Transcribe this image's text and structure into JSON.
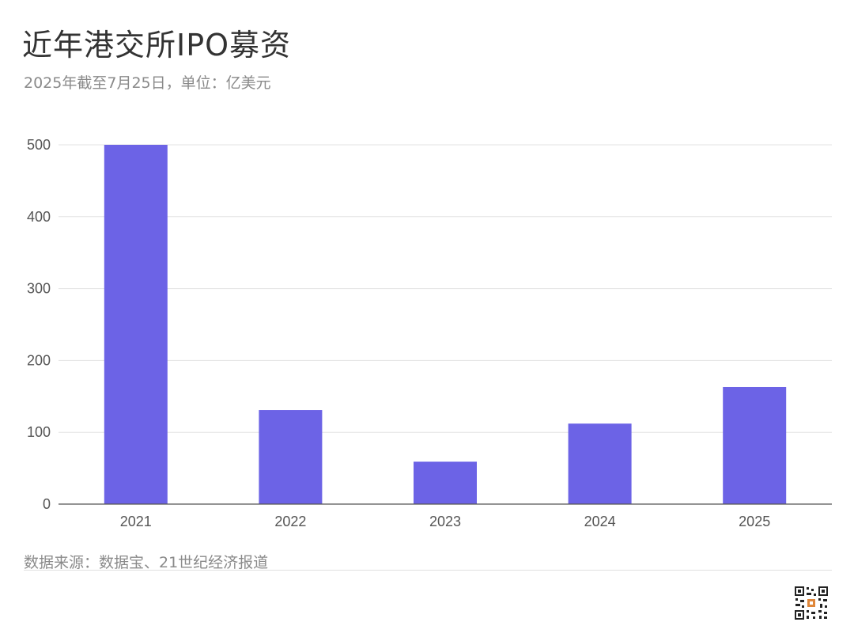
{
  "header": {
    "title": "近年港交所IPO募资",
    "subtitle": "2025年截至7月25日，单位：亿美元"
  },
  "footer": {
    "source": "数据来源：数据宝、21世纪经济报道"
  },
  "colors": {
    "bar": "#6c63e6",
    "grid": "#e3e3e3",
    "axis": "#555555"
  },
  "chart_data": {
    "type": "bar",
    "title": "近年港交所IPO募资",
    "subtitle": "2025年截至7月25日，单位：亿美元",
    "categories": [
      "2021",
      "2022",
      "2023",
      "2024",
      "2025"
    ],
    "values": [
      500,
      131,
      59,
      112,
      163
    ],
    "ylim": [
      0,
      500
    ],
    "yticks": [
      0,
      100,
      200,
      300,
      400,
      500
    ],
    "grid": true,
    "legend": "none",
    "xlabel": "",
    "ylabel": ""
  }
}
